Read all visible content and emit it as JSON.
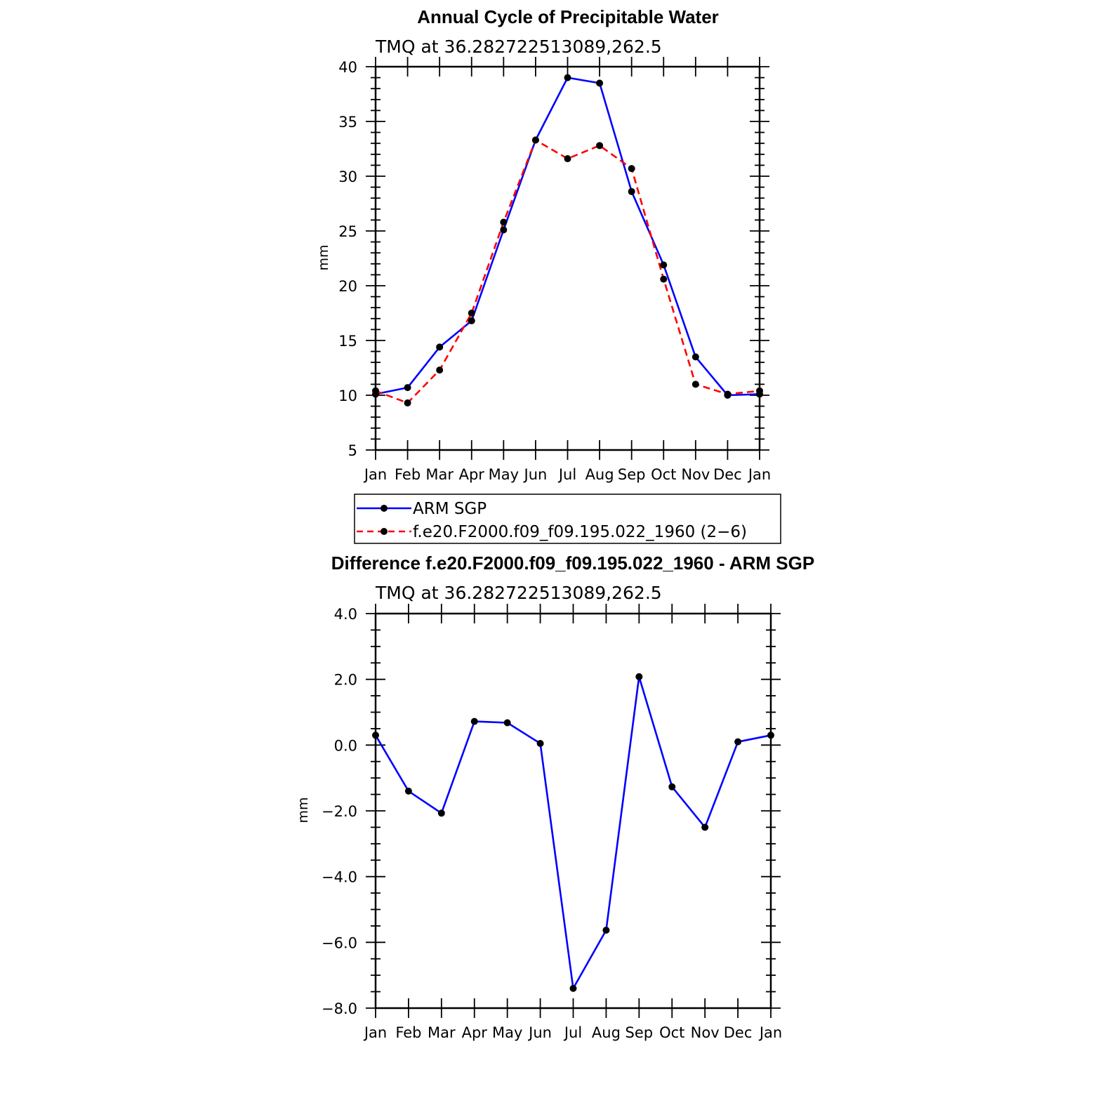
{
  "chart_data": [
    {
      "type": "line",
      "title": "Annual Cycle of Precipitable Water",
      "subtitle": "TMQ at 36.282722513089,262.5",
      "xlabel": "",
      "ylabel": "mm",
      "categories": [
        "Jan",
        "Feb",
        "Mar",
        "Apr",
        "May",
        "Jun",
        "Jul",
        "Aug",
        "Sep",
        "Oct",
        "Nov",
        "Dec",
        "Jan"
      ],
      "ylim": [
        5,
        40
      ],
      "yticks": [
        "5",
        "10",
        "15",
        "20",
        "25",
        "30",
        "35",
        "40"
      ],
      "grid": false,
      "legend_placement": "below",
      "series": [
        {
          "name": "ARM SGP",
          "color": "#0000ff",
          "style": "solid",
          "values": [
            10.1,
            10.7,
            14.4,
            16.8,
            25.1,
            33.3,
            39.0,
            38.5,
            28.6,
            21.9,
            13.5,
            10.0,
            10.1
          ]
        },
        {
          "name": "f.e20.F2000.f09_f09.195.022_1960 (2−6)",
          "color": "#ff0000",
          "style": "dashed",
          "values": [
            10.4,
            9.3,
            12.3,
            17.5,
            25.8,
            33.3,
            31.6,
            32.8,
            30.7,
            20.6,
            11.0,
            10.1,
            10.4
          ]
        }
      ]
    },
    {
      "type": "line",
      "title": "Difference f.e20.F2000.f09_f09.195.022_1960 - ARM SGP",
      "subtitle": "TMQ at 36.282722513089,262.5",
      "xlabel": "",
      "ylabel": "mm",
      "categories": [
        "Jan",
        "Feb",
        "Mar",
        "Apr",
        "May",
        "Jun",
        "Jul",
        "Aug",
        "Sep",
        "Oct",
        "Nov",
        "Dec",
        "Jan"
      ],
      "ylim": [
        -8,
        4
      ],
      "yticks": [
        "−8.0",
        "−6.0",
        "−4.0",
        "−2.0",
        "0.0",
        "2.0",
        "4.0"
      ],
      "grid": false,
      "series": [
        {
          "name": "",
          "color": "#0000ff",
          "style": "solid",
          "values": [
            0.3,
            -1.4,
            -2.07,
            0.72,
            0.68,
            0.05,
            -7.4,
            -5.63,
            2.08,
            -1.27,
            -2.5,
            0.1,
            0.3
          ]
        }
      ]
    }
  ]
}
